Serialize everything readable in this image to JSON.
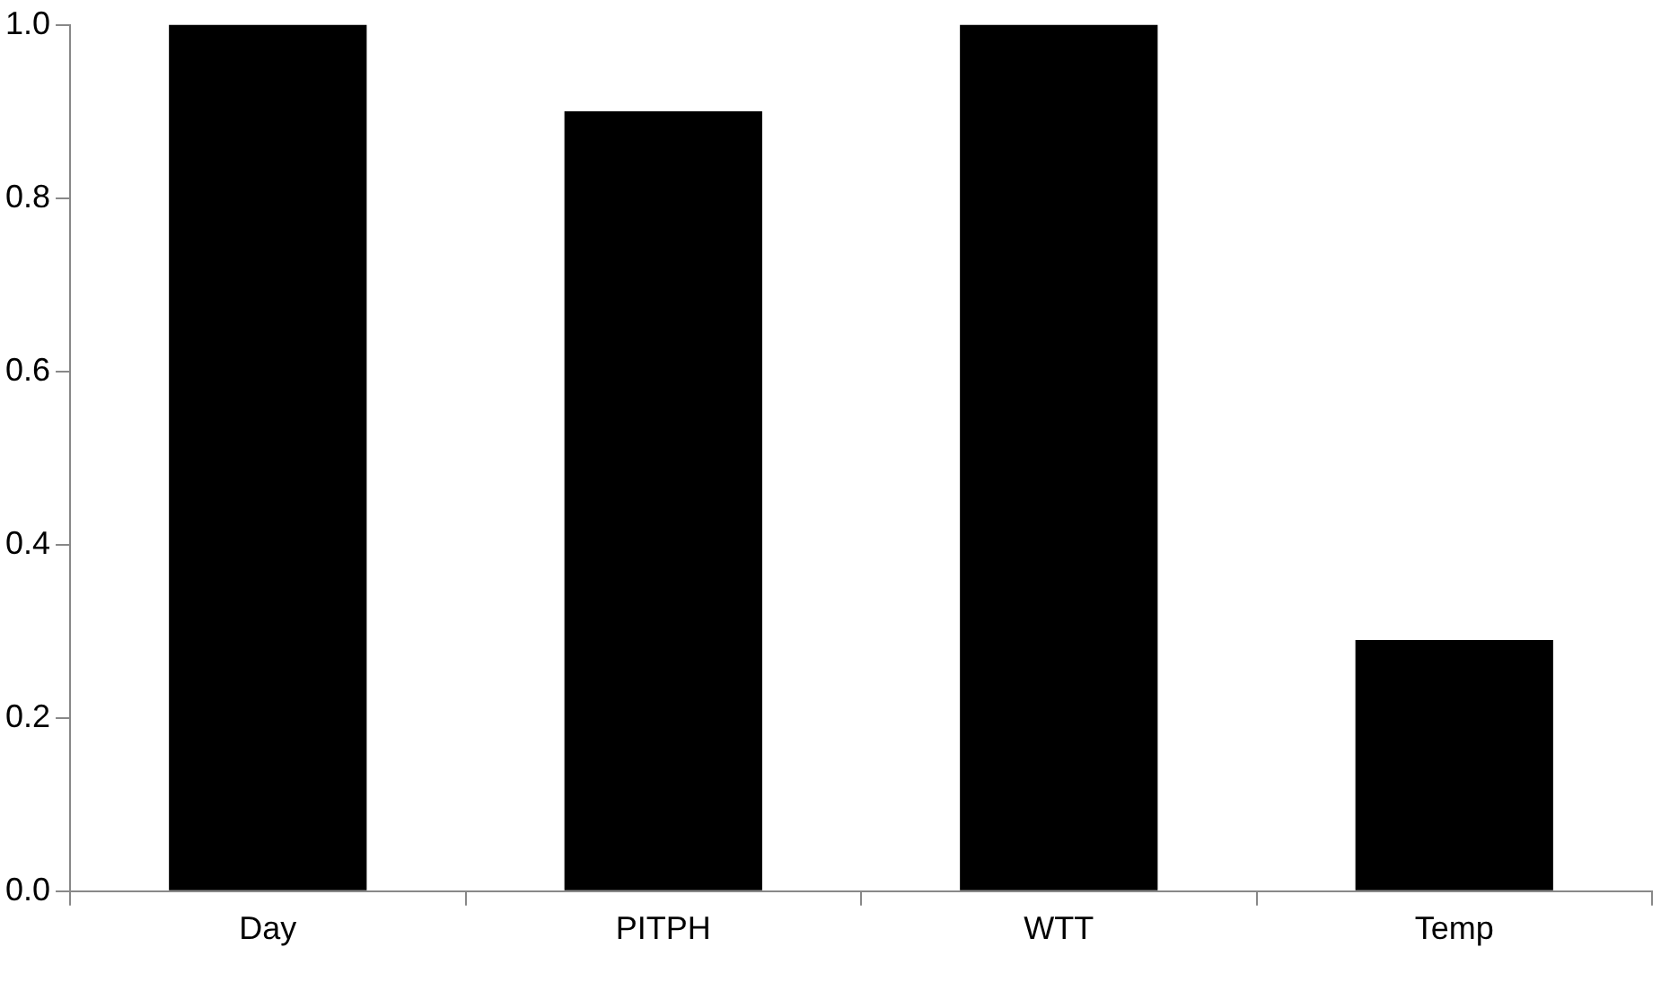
{
  "chart_data": {
    "type": "bar",
    "categories": [
      "Day",
      "PITPH",
      "WTT",
      "Temp"
    ],
    "values": [
      1.0,
      0.9,
      1.0,
      0.29
    ],
    "color": "#000000",
    "ylim": [
      0,
      1
    ],
    "yticks": [
      {
        "value": 0,
        "label": "0.0"
      },
      {
        "value": 0.2,
        "label": "0.2"
      },
      {
        "value": 0.4,
        "label": "0.4"
      },
      {
        "value": 0.6,
        "label": "0.6"
      },
      {
        "value": 0.8,
        "label": "0.8"
      },
      {
        "value": 1,
        "label": "1.0"
      }
    ],
    "grid": false,
    "legend": false
  }
}
